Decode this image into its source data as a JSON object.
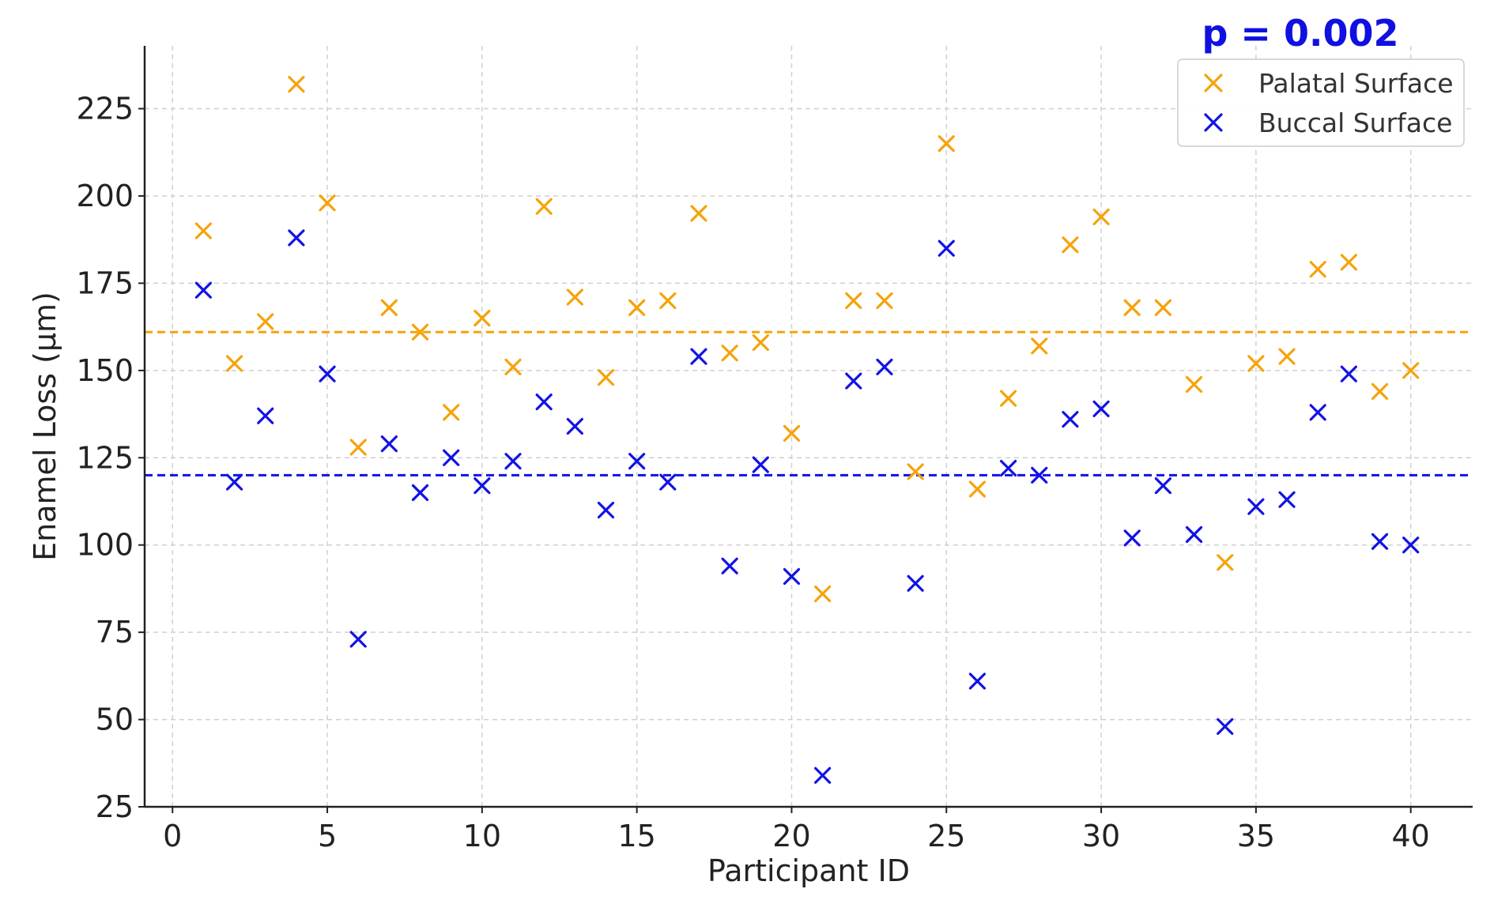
{
  "chart_data": {
    "type": "scatter",
    "title": "",
    "xlabel": "Participant ID",
    "ylabel": "Enamel Loss (µm)",
    "xlim": [
      -0.9,
      42
    ],
    "ylim": [
      25,
      243
    ],
    "xticks": [
      0,
      5,
      10,
      15,
      20,
      25,
      30,
      35,
      40
    ],
    "yticks": [
      25,
      50,
      75,
      100,
      125,
      150,
      175,
      200,
      225
    ],
    "grid": true,
    "legend_position": "top-right",
    "annotation": "p = 0.002",
    "annotation_color": "#1010e0",
    "x": [
      1,
      2,
      3,
      4,
      5,
      6,
      7,
      8,
      9,
      10,
      11,
      12,
      13,
      14,
      15,
      16,
      17,
      18,
      19,
      20,
      21,
      22,
      23,
      24,
      25,
      26,
      27,
      28,
      29,
      30,
      31,
      32,
      33,
      34,
      35,
      36,
      37,
      38,
      39,
      40
    ],
    "series": [
      {
        "name": "Palatal Surface",
        "color": "#f5a30a",
        "marker": "x",
        "mean": 161,
        "values": [
          190,
          152,
          164,
          232,
          198,
          128,
          168,
          161,
          138,
          165,
          151,
          197,
          171,
          148,
          168,
          170,
          195,
          155,
          158,
          132,
          86,
          170,
          170,
          121,
          215,
          116,
          142,
          157,
          186,
          194,
          168,
          168,
          146,
          95,
          152,
          154,
          179,
          181,
          144,
          150
        ]
      },
      {
        "name": "Buccal Surface",
        "color": "#1212e6",
        "marker": "x",
        "mean": 120,
        "values": [
          173,
          118,
          137,
          188,
          149,
          73,
          129,
          115,
          125,
          117,
          124,
          141,
          134,
          110,
          124,
          118,
          154,
          94,
          123,
          91,
          34,
          147,
          151,
          89,
          185,
          61,
          122,
          120,
          136,
          139,
          102,
          117,
          103,
          48,
          111,
          113,
          138,
          149,
          101,
          100
        ]
      }
    ]
  }
}
